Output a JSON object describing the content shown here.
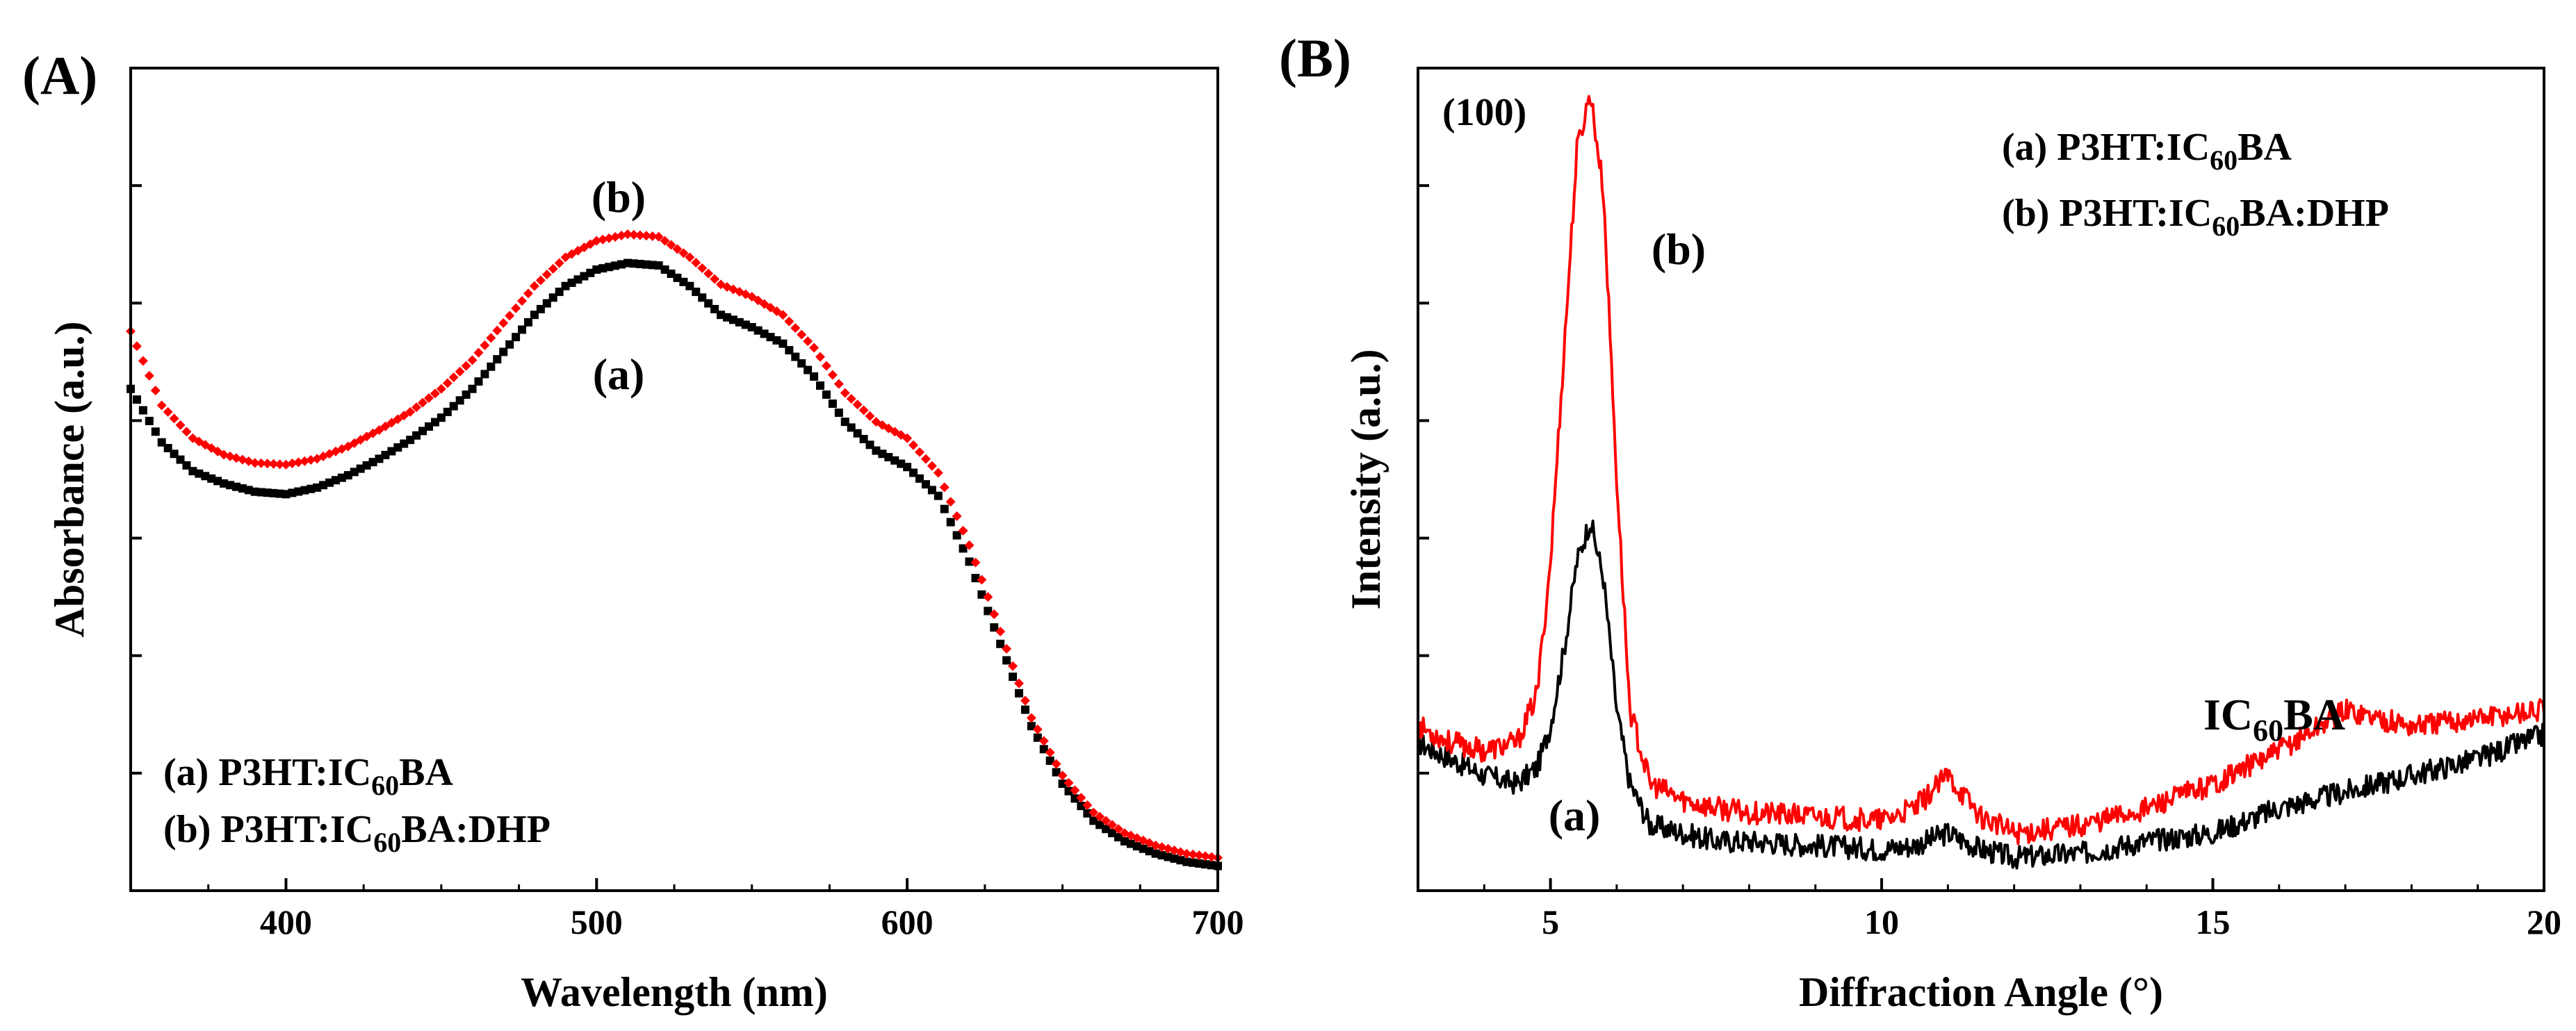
{
  "chart_data": [
    {
      "panel_label": "(A)",
      "type": "scatter",
      "xlabel": "Wavelength (nm)",
      "ylabel": "Absorbance (a.u.)",
      "xlim": [
        350,
        700
      ],
      "ylim": [
        0,
        1
      ],
      "x_ticks": [
        400,
        500,
        600,
        700
      ],
      "y_ticks_labeled": false,
      "annotations": [
        "(b)",
        "(a)"
      ],
      "legend": [
        {
          "prefix": "(a) P3HT:IC",
          "subscript": "60",
          "suffix": "BA"
        },
        {
          "prefix": "(b) P3HT:IC",
          "subscript": "60",
          "suffix": "BA:DHP"
        }
      ],
      "series": [
        {
          "name": "(a) P3HT:IC60BA",
          "color": "#000000",
          "marker": "square",
          "x": [
            350,
            360,
            370,
            380,
            390,
            400,
            410,
            420,
            430,
            440,
            450,
            460,
            470,
            480,
            490,
            500,
            510,
            520,
            530,
            540,
            550,
            560,
            570,
            580,
            590,
            600,
            610,
            620,
            630,
            640,
            650,
            660,
            670,
            680,
            690,
            700
          ],
          "y": [
            0.61,
            0.545,
            0.51,
            0.495,
            0.485,
            0.482,
            0.49,
            0.505,
            0.525,
            0.548,
            0.575,
            0.61,
            0.655,
            0.7,
            0.735,
            0.755,
            0.763,
            0.76,
            0.735,
            0.7,
            0.685,
            0.665,
            0.625,
            0.57,
            0.535,
            0.515,
            0.48,
            0.4,
            0.3,
            0.2,
            0.13,
            0.085,
            0.06,
            0.045,
            0.035,
            0.03
          ]
        },
        {
          "name": "(b) P3HT:IC60BA:DHP",
          "color": "#ff0000",
          "marker": "diamond",
          "x": [
            350,
            360,
            370,
            380,
            390,
            400,
            410,
            420,
            430,
            440,
            450,
            460,
            470,
            480,
            490,
            500,
            510,
            520,
            530,
            540,
            550,
            560,
            570,
            580,
            590,
            600,
            610,
            620,
            630,
            640,
            650,
            660,
            670,
            680,
            690,
            700
          ],
          "y": [
            0.68,
            0.59,
            0.55,
            0.53,
            0.52,
            0.518,
            0.525,
            0.54,
            0.56,
            0.582,
            0.61,
            0.645,
            0.69,
            0.735,
            0.77,
            0.79,
            0.798,
            0.795,
            0.77,
            0.737,
            0.722,
            0.7,
            0.66,
            0.605,
            0.57,
            0.55,
            0.508,
            0.42,
            0.315,
            0.21,
            0.14,
            0.095,
            0.07,
            0.055,
            0.045,
            0.04
          ]
        }
      ]
    },
    {
      "panel_label": "(B)",
      "type": "line",
      "xlabel": "Diffraction Angle (°)",
      "ylabel": "Intensity (a.u.)",
      "xlim": [
        3,
        20
      ],
      "ylim": [
        0,
        1
      ],
      "x_ticks": [
        5,
        10,
        15,
        20
      ],
      "y_ticks_labeled": false,
      "annotations": [
        "(100)",
        "(b)",
        "(a)"
      ],
      "peak_annotation": {
        "prefix": "IC",
        "subscript": "60",
        "suffix": "BA"
      },
      "legend": [
        {
          "prefix": "(a) P3HT:IC",
          "subscript": "60",
          "suffix": "BA"
        },
        {
          "prefix": "(b) P3HT:IC",
          "subscript": "60",
          "suffix": "BA:DHP"
        }
      ],
      "series": [
        {
          "name": "(a) P3HT:IC60BA",
          "color": "#000000",
          "x": [
            3,
            3.5,
            4,
            4.5,
            4.8,
            5.0,
            5.2,
            5.4,
            5.6,
            5.8,
            6.0,
            6.2,
            6.5,
            7,
            7.5,
            8,
            9,
            10,
            10.5,
            11,
            11.5,
            12,
            13,
            14,
            15,
            16,
            17,
            18,
            19,
            20
          ],
          "y": [
            0.18,
            0.16,
            0.14,
            0.13,
            0.15,
            0.2,
            0.29,
            0.4,
            0.45,
            0.38,
            0.22,
            0.13,
            0.08,
            0.07,
            0.06,
            0.06,
            0.055,
            0.05,
            0.055,
            0.07,
            0.05,
            0.04,
            0.045,
            0.06,
            0.07,
            0.1,
            0.12,
            0.14,
            0.16,
            0.19
          ]
        },
        {
          "name": "(b) P3HT:IC60BA:DHP",
          "color": "#ff0000",
          "x": [
            3,
            3.5,
            4,
            4.5,
            4.8,
            5.0,
            5.2,
            5.4,
            5.6,
            5.8,
            6.0,
            6.2,
            6.5,
            7,
            7.5,
            8,
            9,
            10,
            10.5,
            11,
            11.5,
            12,
            13,
            14,
            15,
            16,
            17,
            18,
            19,
            20
          ],
          "y": [
            0.2,
            0.18,
            0.17,
            0.18,
            0.24,
            0.4,
            0.65,
            0.9,
            0.97,
            0.85,
            0.5,
            0.22,
            0.13,
            0.11,
            0.1,
            0.095,
            0.09,
            0.085,
            0.1,
            0.14,
            0.09,
            0.07,
            0.08,
            0.1,
            0.13,
            0.17,
            0.22,
            0.2,
            0.21,
            0.22
          ]
        }
      ]
    }
  ]
}
